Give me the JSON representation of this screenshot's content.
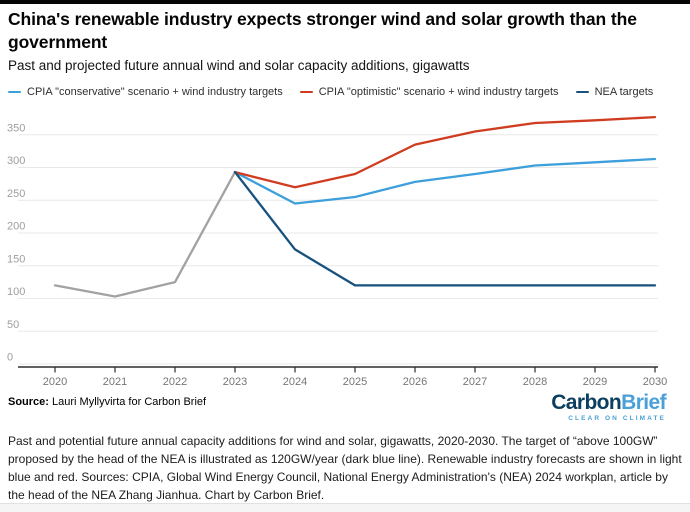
{
  "header": {
    "title": "China's renewable industry expects stronger wind and solar growth than the government",
    "subtitle": "Past and projected future annual wind and solar capacity additions, gigawatts"
  },
  "legend": {
    "items": [
      {
        "label": "CPIA \"conservative\" scenario + wind industry targets",
        "color": "#3d9fdb"
      },
      {
        "label": "CPIA \"optimistic\" scenario + wind industry targets",
        "color": "#d03c20"
      },
      {
        "label": "NEA targets",
        "color": "#17517e"
      }
    ]
  },
  "chart_data": {
    "type": "line",
    "title": "Past and projected future annual wind and solar capacity additions, gigawatts",
    "unit": "gigawatts",
    "x": [
      2020,
      2021,
      2022,
      2023,
      2024,
      2025,
      2026,
      2027,
      2028,
      2029,
      2030
    ],
    "ylim": [
      0,
      390
    ],
    "y_ticks": [
      0,
      50,
      100,
      150,
      200,
      250,
      300,
      350
    ],
    "grid": true,
    "legend_position": "top",
    "series": [
      {
        "key": "historical",
        "name": "Historical additions (2020-2023)",
        "color": "#a2a2a2",
        "values": [
          120,
          103,
          125,
          293,
          null,
          null,
          null,
          null,
          null,
          null,
          null
        ]
      },
      {
        "key": "cpia-conservative",
        "name": "CPIA \"conservative\" scenario + wind industry targets",
        "color": "#3d9fdb",
        "values": [
          null,
          null,
          null,
          293,
          245,
          255,
          278,
          290,
          303,
          308,
          313
        ]
      },
      {
        "key": "cpia-optimistic",
        "name": "CPIA \"optimistic\" scenario + wind industry targets",
        "color": "#d03c20",
        "values": [
          null,
          null,
          null,
          293,
          270,
          290,
          335,
          355,
          368,
          372,
          377
        ]
      },
      {
        "key": "nea-targets",
        "name": "NEA targets",
        "color": "#17517e",
        "values": [
          null,
          null,
          null,
          293,
          175,
          120,
          120,
          120,
          120,
          120,
          120
        ]
      }
    ]
  },
  "footer": {
    "source_label": "Source:",
    "source_text": " Lauri Myllyvirta for Carbon Brief",
    "logo": {
      "part1": "Carbon",
      "part2": "Brief",
      "tagline": "CLEAR ON CLIMATE",
      "navy": "#0b3e5f",
      "blue": "#4aa0d8"
    },
    "caption": "Past and potential future annual capacity additions for wind and solar, gigawatts, 2020-2030. The target of “above 100GW” proposed by the head of the NEA is illustrated as 120GW/year (dark blue line). Renewable industry forecasts are shown in light blue and red. Sources: CPIA, Global Wind Energy Council, National Energy Administration's (NEA) 2024 workplan, article by the head of the NEA Zhang Jianhua. Chart by Carbon Brief."
  }
}
